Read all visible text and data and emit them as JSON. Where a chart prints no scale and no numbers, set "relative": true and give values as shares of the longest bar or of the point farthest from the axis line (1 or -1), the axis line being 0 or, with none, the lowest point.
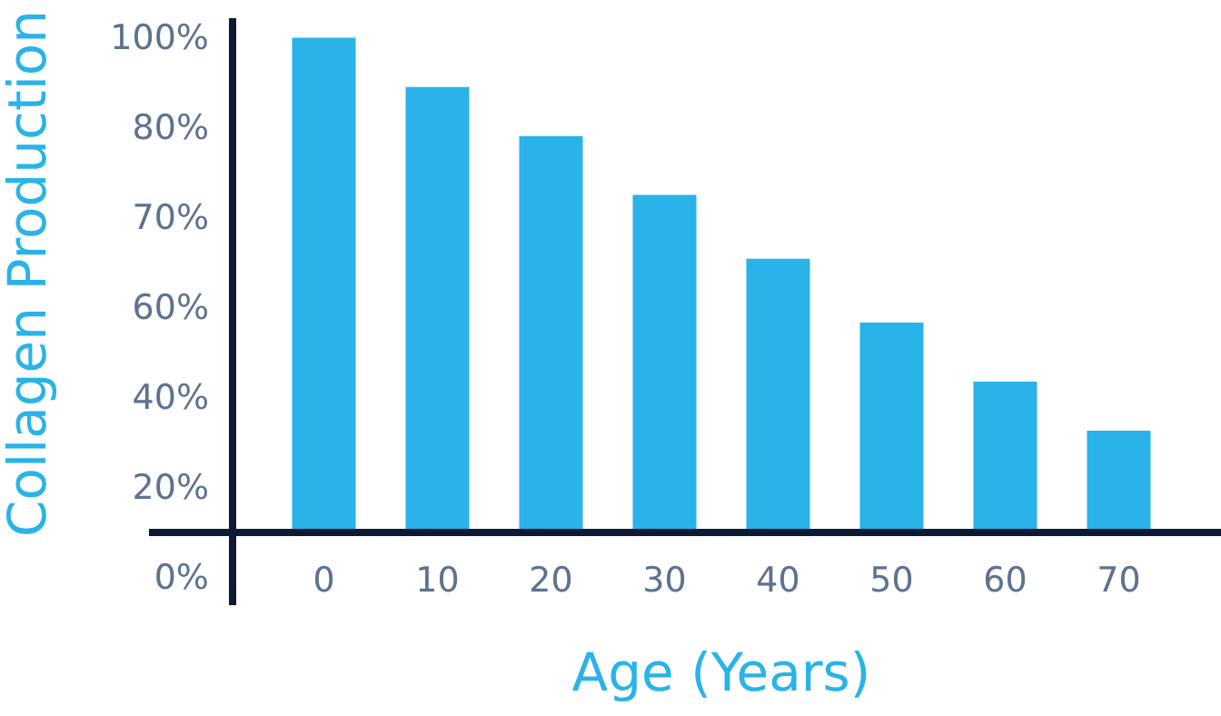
{
  "chart_data": {
    "type": "bar",
    "xlabel": "Age (Years)",
    "ylabel": "Collagen Production",
    "categories": [
      "0",
      "10",
      "20",
      "30",
      "40",
      "50",
      "60",
      "70"
    ],
    "values": [
      1,
      0.9,
      0.8,
      0.68,
      0.55,
      0.42,
      0.3,
      0.2
    ],
    "color": "#29b3e8",
    "relative": true,
    "annotations": [
      "100%",
      "80%",
      "70%",
      "60%",
      "40%",
      "20%",
      "0%"
    ],
    "grid": false,
    "legend": false
  }
}
